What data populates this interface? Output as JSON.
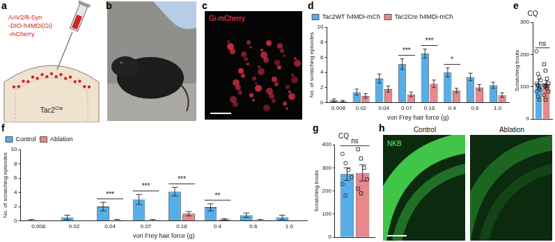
{
  "panel_a": {
    "letter": "a",
    "label_lines": [
      "AAV2/8-Syn",
      "-DIO-h4MDi(Gi)",
      "-mCherry"
    ],
    "cell_label": {
      "base": "Tac2",
      "sup": "Cre"
    }
  },
  "panel_b": {
    "letter": "b"
  },
  "panel_c": {
    "letter": "c",
    "label": "Gi-mCherry"
  },
  "panel_h": {
    "letter": "h",
    "titles": [
      "Control",
      "Ablation"
    ],
    "stain": "NKB"
  },
  "chart_data": [
    {
      "panel": "d",
      "type": "bar",
      "categories": [
        "0.008",
        "0.02",
        "0.04",
        "0.07",
        "0.16",
        "0.4",
        "0.6",
        "1.0"
      ],
      "series": [
        {
          "name": "Tac2WT h4MDi-mCh",
          "color": "#56aee8",
          "values": [
            0.3,
            1.4,
            3.2,
            5.1,
            6.5,
            4.0,
            3.4,
            2.3
          ],
          "errors": [
            0.2,
            0.4,
            0.6,
            0.7,
            0.6,
            0.6,
            0.5,
            0.4
          ]
        },
        {
          "name": "Tac2Cre h4MDi-mCh",
          "color": "#e8878c",
          "values": [
            0.2,
            0.9,
            1.8,
            1.1,
            2.5,
            1.6,
            2.0,
            1.0
          ],
          "errors": [
            0.1,
            0.3,
            0.4,
            0.3,
            0.5,
            0.3,
            0.4,
            0.3
          ]
        }
      ],
      "x_label": "von Frey hair force (g)",
      "y_label": "No. of scratching episodes",
      "ylim": [
        0,
        10
      ],
      "yticks": [
        0,
        2,
        4,
        6,
        8,
        10
      ],
      "grid": false,
      "legend": "upper left",
      "annotations": [
        {
          "category": "0.07",
          "text": "***"
        },
        {
          "category": "0.16",
          "text": "***"
        },
        {
          "category": "0.4",
          "text": "*"
        }
      ]
    },
    {
      "panel": "e",
      "type": "bar",
      "title": "CQ",
      "categories": [
        null
      ],
      "series": [
        {
          "color": "#56aee8",
          "values": [
            110
          ],
          "errors": [
            13
          ],
          "marker": "circle",
          "points": [
            [
              210,
              140,
              130,
              120,
              110,
              105,
              95,
              90,
              85,
              70,
              60
            ]
          ]
        },
        {
          "color": "#e8878c",
          "values": [
            108
          ],
          "errors": [
            11
          ],
          "marker": "square",
          "points": [
            [
              170,
              150,
              125,
              110,
              105,
              100,
              95,
              85,
              75,
              60
            ]
          ]
        }
      ],
      "y_label": "Scratching bouts",
      "ylim": [
        0,
        300
      ],
      "yticks": [
        0,
        100,
        200,
        300
      ],
      "grid": false,
      "tick_labels": "y",
      "annotations": [
        {
          "text": "ns"
        }
      ]
    },
    {
      "panel": "f",
      "type": "bar",
      "categories": [
        "0.008",
        "0.02",
        "0.04",
        "0.07",
        "0.16",
        "0.4",
        "0.6",
        "1.0"
      ],
      "series": [
        {
          "name": "Control",
          "color": "#56aee8",
          "values": [
            0.1,
            0.5,
            2.0,
            3.0,
            4.1,
            1.9,
            0.8,
            0.5
          ],
          "errors": [
            0.1,
            0.3,
            0.6,
            0.7,
            0.6,
            0.5,
            0.3,
            0.3
          ]
        },
        {
          "name": "Ablation",
          "color": "#e8878c",
          "values": [
            0.0,
            0.0,
            0.1,
            0.1,
            1.0,
            0.2,
            0.1,
            0.0
          ],
          "errors": [
            0.0,
            0.0,
            0.1,
            0.1,
            0.3,
            0.1,
            0.1,
            0.0
          ]
        }
      ],
      "x_label": "von Frey hair force (g)",
      "y_label": "No. of scratching episodes",
      "ylim": [
        0,
        10
      ],
      "yticks": [
        0,
        2,
        4,
        6,
        8,
        10
      ],
      "grid": false,
      "legend": "upper left",
      "annotations": [
        {
          "category": "0.04",
          "text": "***"
        },
        {
          "category": "0.07",
          "text": "***"
        },
        {
          "category": "0.16",
          "text": "***"
        },
        {
          "category": "0.4",
          "text": "**"
        }
      ]
    },
    {
      "panel": "g",
      "type": "bar",
      "title": "CQ",
      "categories": [
        null
      ],
      "series": [
        {
          "color": "#56aee8",
          "values": [
            273
          ],
          "errors": [
            27
          ],
          "marker": "circle",
          "points": [
            [
              360,
              320,
              290,
              260,
              230,
              180
            ]
          ]
        },
        {
          "color": "#e8878c",
          "values": [
            278
          ],
          "errors": [
            35
          ],
          "marker": "square",
          "points": [
            [
              380,
              340,
              300,
              250,
              210,
              190
            ]
          ]
        }
      ],
      "y_label": "Scratching bouts",
      "ylim": [
        0,
        400
      ],
      "yticks": [
        0,
        100,
        200,
        300,
        400
      ],
      "grid": false,
      "tick_labels": "y",
      "annotations": [
        {
          "text": "ns"
        }
      ]
    }
  ]
}
